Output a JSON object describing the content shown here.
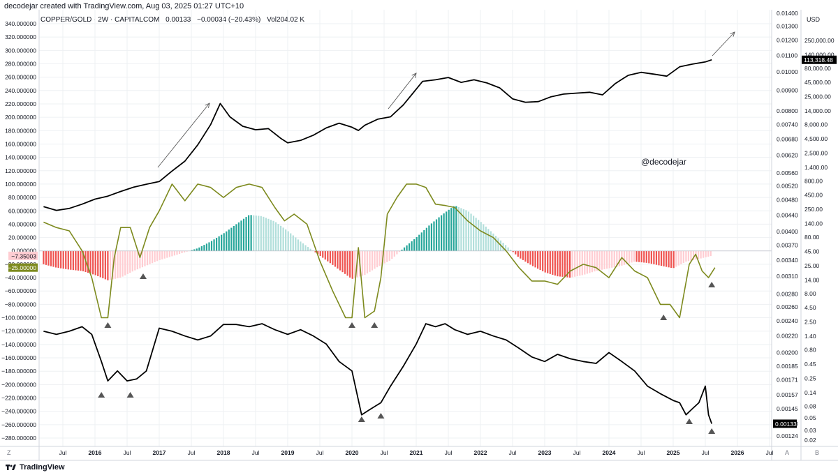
{
  "header": {
    "created_by": "decodejar created with TradingView.com, Aug 03, 2025 01:27 UTC+10"
  },
  "legend": {
    "symbol": "COPPER/GOLD · 2W · CAPITALCOM",
    "value": "0.00133",
    "change": "−0.00034 (−20.43%)",
    "volume": "Vol204.02 K"
  },
  "watermark": "@decodejar",
  "currency": "USD",
  "footer": {
    "brand": "TradingView",
    "z_label": "Z",
    "a_label": "A",
    "b_label": "B"
  },
  "colors": {
    "line": "#000000",
    "oscillator": "#7d8a1e",
    "hist_pos_strong": "#26a69a",
    "hist_pos_weak": "#b2dfdb",
    "hist_neg_strong": "#ef5350",
    "hist_neg_weak": "#ffcdd2",
    "marker": "#555555",
    "grid": "#eef0f3"
  },
  "chart_data": {
    "type": "line",
    "x_axis": {
      "ticks": [
        "Jul",
        "2016",
        "Jul",
        "2017",
        "Jul",
        "2018",
        "Jul",
        "2019",
        "Jul",
        "2020",
        "Jul",
        "2021",
        "Jul",
        "2022",
        "Jul",
        "2023",
        "Jul",
        "2024",
        "Jul",
        "2025",
        "Jul",
        "2026",
        "Jul"
      ],
      "range": [
        "2015-03",
        "2026-10"
      ]
    },
    "left_axis": {
      "ticks": [
        "340.000000",
        "320.000000",
        "300.000000",
        "280.000000",
        "260.000000",
        "240.000000",
        "220.000000",
        "200.000000",
        "180.000000",
        "160.000000",
        "140.000000",
        "120.000000",
        "100.000000",
        "80.000000",
        "60.000000",
        "40.000000",
        "20.000000",
        "0.000000",
        "−20.000000",
        "−40.000000",
        "−60.000000",
        "−80.000000",
        "−100.000000",
        "−120.000000",
        "−140.000000",
        "−160.000000",
        "−180.000000",
        "−200.000000",
        "−220.000000",
        "−240.000000",
        "−260.000000",
        "−280.000000"
      ],
      "range": [
        -280,
        340
      ],
      "badges": [
        {
          "text": "−7.35003",
          "color": "#ffcdd2",
          "text_color": "#131722",
          "value": -7.35
        },
        {
          "text": "−25.00000",
          "color": "#7d8a1e",
          "text_color": "#ffffff",
          "value": -25
        }
      ]
    },
    "right_axis_inner": {
      "scale": "log",
      "ticks": [
        "0.01400",
        "0.01300",
        "0.01200",
        "0.01100",
        "0.01000",
        "0.00900",
        "0.00800",
        "0.00740",
        "0.00680",
        "0.00620",
        "0.00560",
        "0.00520",
        "0.00480",
        "0.00440",
        "0.00400",
        "0.00370",
        "0.00340",
        "0.00310",
        "0.00280",
        "0.00260",
        "0.00240",
        "0.00220",
        "0.00200",
        "0.00185",
        "0.00171",
        "0.00157",
        "0.00145",
        "0.00133",
        "0.00124"
      ],
      "badge": {
        "text": "0.00133",
        "color": "#000000",
        "text_color": "#ffffff"
      }
    },
    "right_axis_outer": {
      "scale": "log",
      "ticks": [
        "250,000.00",
        "140,000.00",
        "80,000.00",
        "45,000.00",
        "25,000.00",
        "14,000.00",
        "8,000.00",
        "4,500.00",
        "2,500.00",
        "1,400.00",
        "800.00",
        "450.00",
        "250.00",
        "140.00",
        "80.00",
        "45.00",
        "25.00",
        "14.00",
        "8.00",
        "4.50",
        "2.50",
        "1.40",
        "0.80",
        "0.45",
        "0.25",
        "0.14",
        "0.08",
        "0.05",
        "0.03",
        "0.02"
      ],
      "badge": {
        "text": "113,318.48",
        "color": "#000000",
        "text_color": "#ffffff"
      }
    },
    "series": [
      {
        "name": "",
        "axis": "right_outer",
        "style": "line",
        "x": [
          2015.2,
          2015.4,
          2015.6,
          2015.8,
          2016.0,
          2016.2,
          2016.4,
          2016.6,
          2016.8,
          2017.0,
          2017.2,
          2017.4,
          2017.6,
          2017.8,
          2017.95,
          2018.1,
          2018.3,
          2018.5,
          2018.7,
          2018.9,
          2019.0,
          2019.2,
          2019.4,
          2019.6,
          2019.8,
          2020.0,
          2020.1,
          2020.2,
          2020.4,
          2020.6,
          2020.8,
          2020.95,
          2021.1,
          2021.3,
          2021.5,
          2021.7,
          2021.9,
          2022.1,
          2022.3,
          2022.5,
          2022.7,
          2022.9,
          2023.1,
          2023.3,
          2023.5,
          2023.7,
          2023.9,
          2024.1,
          2024.3,
          2024.5,
          2024.7,
          2024.9,
          2025.1,
          2025.3,
          2025.5,
          2025.6
        ],
        "y": [
          280,
          240,
          260,
          310,
          380,
          430,
          520,
          620,
          700,
          780,
          1200,
          1800,
          3500,
          8000,
          19000,
          11000,
          7500,
          6500,
          6800,
          4500,
          3800,
          4200,
          5200,
          7000,
          8500,
          7200,
          6300,
          7800,
          10000,
          11000,
          18000,
          29000,
          47000,
          50000,
          55000,
          45000,
          50000,
          44000,
          36000,
          23000,
          20000,
          20500,
          25000,
          28000,
          29000,
          30000,
          27000,
          43000,
          60000,
          68000,
          63000,
          58000,
          85000,
          95000,
          104000,
          113318
        ]
      },
      {
        "name": "",
        "axis": "left",
        "style": "oscillator-line",
        "x": [
          2015.2,
          2015.4,
          2015.6,
          2015.8,
          2015.95,
          2016.1,
          2016.2,
          2016.3,
          2016.4,
          2016.55,
          2016.7,
          2016.85,
          2017.0,
          2017.2,
          2017.4,
          2017.6,
          2017.8,
          2018.0,
          2018.2,
          2018.4,
          2018.6,
          2018.8,
          2018.95,
          2019.1,
          2019.3,
          2019.5,
          2019.7,
          2019.9,
          2020.0,
          2020.1,
          2020.2,
          2020.35,
          2020.45,
          2020.55,
          2020.7,
          2020.85,
          2021.0,
          2021.15,
          2021.3,
          2021.45,
          2021.6,
          2021.8,
          2022.0,
          2022.2,
          2022.4,
          2022.6,
          2022.8,
          2023.0,
          2023.2,
          2023.4,
          2023.6,
          2023.8,
          2024.0,
          2024.2,
          2024.4,
          2024.6,
          2024.8,
          2024.95,
          2025.1,
          2025.25,
          2025.35,
          2025.45,
          2025.55,
          2025.65
        ],
        "y": [
          43,
          35,
          30,
          0,
          -40,
          -100,
          -100,
          -10,
          35,
          35,
          -10,
          35,
          60,
          100,
          75,
          100,
          95,
          80,
          95,
          100,
          95,
          65,
          45,
          55,
          40,
          -15,
          -60,
          -100,
          -100,
          5,
          -100,
          -90,
          -40,
          55,
          80,
          100,
          100,
          95,
          70,
          68,
          65,
          45,
          30,
          20,
          0,
          -25,
          -45,
          -45,
          -50,
          -30,
          -20,
          -25,
          -40,
          -10,
          -30,
          -40,
          -80,
          -80,
          -100,
          -20,
          -5,
          -30,
          -40,
          -25
        ]
      },
      {
        "name": "",
        "axis": "left",
        "style": "histogram",
        "x": [
          2015.2,
          2015.4,
          2015.6,
          2015.8,
          2016.0,
          2016.2,
          2016.4,
          2016.6,
          2016.8,
          2017.0,
          2017.2,
          2017.4,
          2017.6,
          2017.8,
          2018.0,
          2018.2,
          2018.4,
          2018.6,
          2018.8,
          2019.0,
          2019.2,
          2019.4,
          2019.6,
          2019.8,
          2020.0,
          2020.2,
          2020.4,
          2020.6,
          2020.8,
          2021.0,
          2021.2,
          2021.4,
          2021.6,
          2021.8,
          2022.0,
          2022.2,
          2022.4,
          2022.6,
          2022.8,
          2023.0,
          2023.2,
          2023.4,
          2023.6,
          2023.8,
          2024.0,
          2024.2,
          2024.4,
          2024.6,
          2024.8,
          2025.0,
          2025.2,
          2025.4,
          2025.6
        ],
        "y": [
          -20,
          -25,
          -28,
          -30,
          -36,
          -44,
          -40,
          -30,
          -22,
          -14,
          -8,
          -2,
          4,
          14,
          26,
          40,
          54,
          52,
          44,
          30,
          14,
          0,
          -14,
          -28,
          -42,
          -36,
          -24,
          -14,
          4,
          20,
          38,
          54,
          68,
          60,
          44,
          26,
          8,
          -10,
          -22,
          -32,
          -38,
          -40,
          -36,
          -30,
          -26,
          -22,
          -16,
          -18,
          -22,
          -26,
          -16,
          -12,
          -7.35
        ]
      },
      {
        "name": "",
        "axis": "right_inner",
        "style": "line",
        "x": [
          2015.2,
          2015.4,
          2015.6,
          2015.8,
          2015.95,
          2016.1,
          2016.2,
          2016.35,
          2016.5,
          2016.65,
          2016.8,
          2017.0,
          2017.2,
          2017.4,
          2017.6,
          2017.8,
          2018.0,
          2018.2,
          2018.4,
          2018.6,
          2018.8,
          2019.0,
          2019.2,
          2019.4,
          2019.6,
          2019.8,
          2020.0,
          2020.15,
          2020.3,
          2020.45,
          2020.6,
          2020.8,
          2021.0,
          2021.15,
          2021.3,
          2021.45,
          2021.6,
          2021.8,
          2022.0,
          2022.2,
          2022.4,
          2022.6,
          2022.8,
          2023.0,
          2023.2,
          2023.4,
          2023.6,
          2023.8,
          2024.0,
          2024.2,
          2024.4,
          2024.6,
          2024.8,
          2025.0,
          2025.1,
          2025.2,
          2025.3,
          2025.4,
          2025.5,
          2025.55,
          2025.6
        ],
        "y": [
          0.00226,
          0.00222,
          0.00226,
          0.00232,
          0.00222,
          0.0019,
          0.0017,
          0.0018,
          0.0017,
          0.00172,
          0.0018,
          0.0023,
          0.00226,
          0.0022,
          0.00215,
          0.0022,
          0.00235,
          0.00235,
          0.00232,
          0.00236,
          0.00228,
          0.00222,
          0.00228,
          0.0022,
          0.0021,
          0.0019,
          0.0018,
          0.0014,
          0.00145,
          0.0015,
          0.00165,
          0.00185,
          0.0021,
          0.00236,
          0.00232,
          0.00236,
          0.00228,
          0.00222,
          0.00226,
          0.0022,
          0.00215,
          0.00205,
          0.00195,
          0.0019,
          0.00198,
          0.00193,
          0.0019,
          0.00188,
          0.002,
          0.0019,
          0.0018,
          0.00165,
          0.00158,
          0.00152,
          0.0015,
          0.0014,
          0.00145,
          0.0015,
          0.00165,
          0.0014,
          0.00133
        ]
      }
    ],
    "markers": {
      "shape": "triangle-up",
      "oscillator_lows": [
        2016.2,
        2016.75,
        2020.0,
        2020.35,
        2024.85,
        2025.6
      ],
      "bottom_lows": [
        2016.1,
        2016.55,
        2020.15,
        2020.45,
        2025.25,
        2025.6
      ]
    },
    "arrows": [
      {
        "from_x": 2017.0,
        "to_x": 2017.85,
        "label": ""
      },
      {
        "from_x": 2020.6,
        "to_x": 2021.05,
        "label": ""
      },
      {
        "from_x": 2025.6,
        "to_x": 2026.0,
        "label": ""
      }
    ],
    "grid": true,
    "legend_position": "top-left"
  }
}
